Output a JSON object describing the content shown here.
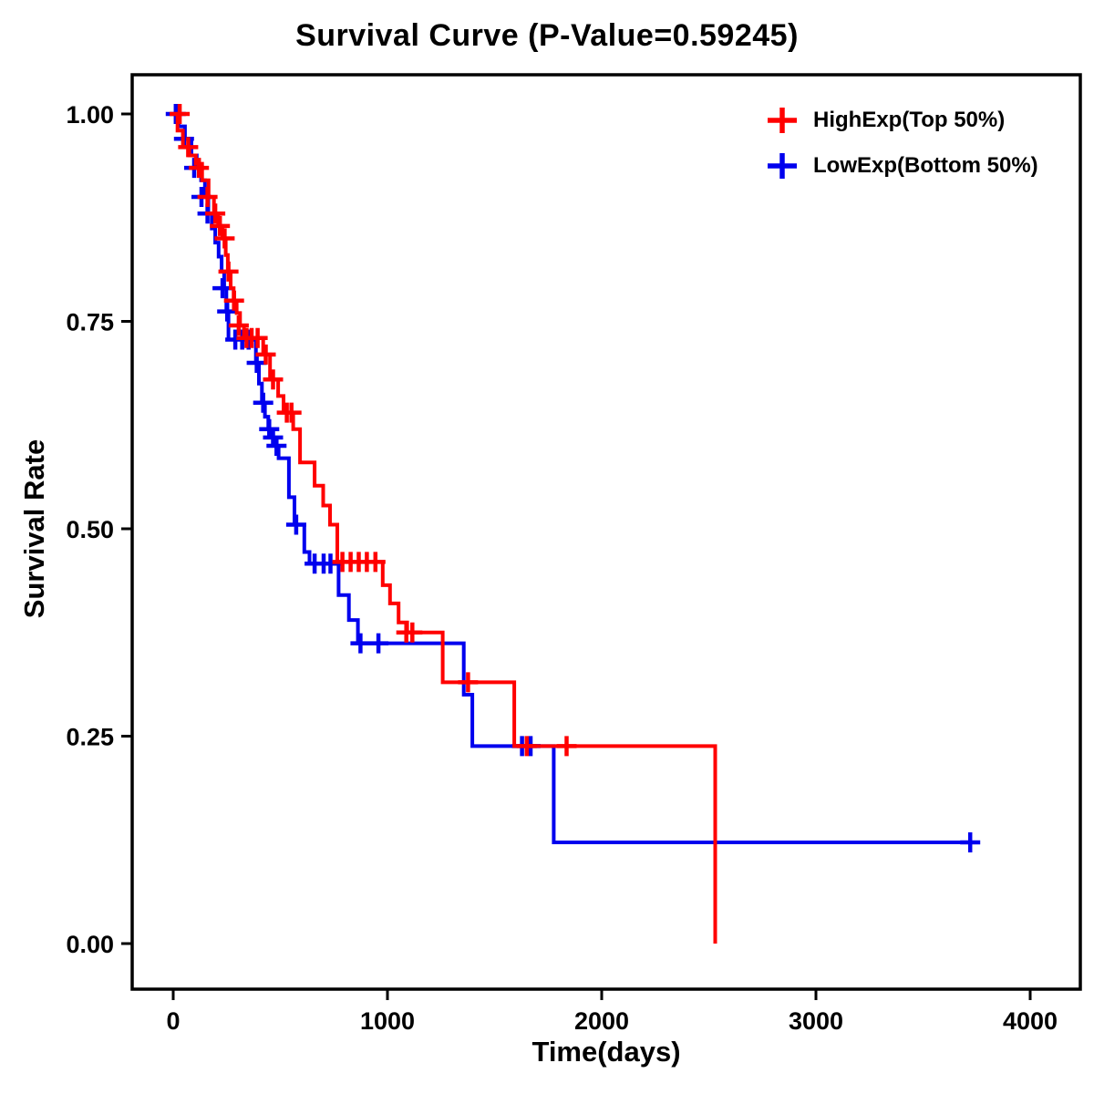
{
  "page": {
    "background_color": "#FFFFFF",
    "text_color": "#000000"
  },
  "chart_data": {
    "type": "line",
    "subtype": "kaplan-meier-survival-step",
    "title": "Survival Curve (P-Value=0.59245)",
    "p_value": "0.59245",
    "xlabel": "Time(days)",
    "ylabel": "Survival Rate",
    "xlim": [
      0,
      4000
    ],
    "ylim": [
      0.0,
      1.0
    ],
    "grid": false,
    "legend_position": "top-right-inside",
    "x_ticks": {
      "labels": [
        "0",
        "1000",
        "2000",
        "3000",
        "4000"
      ],
      "values": [
        0,
        1000,
        2000,
        3000,
        4000
      ]
    },
    "y_ticks": {
      "labels": [
        "0.00",
        "0.25",
        "0.50",
        "0.75",
        "1.00"
      ],
      "values": [
        0,
        0.25,
        0.5,
        0.75,
        1.0
      ]
    },
    "series": [
      {
        "id": "highexp",
        "name": "HighExp(Top 50%)",
        "color": "#FF0000",
        "steps": [
          [
            0,
            1.0
          ],
          [
            20,
            0.98
          ],
          [
            45,
            0.96
          ],
          [
            75,
            0.95
          ],
          [
            105,
            0.94
          ],
          [
            135,
            0.92
          ],
          [
            165,
            0.9
          ],
          [
            190,
            0.88
          ],
          [
            210,
            0.865
          ],
          [
            230,
            0.85
          ],
          [
            245,
            0.83
          ],
          [
            255,
            0.81
          ],
          [
            268,
            0.79
          ],
          [
            282,
            0.775
          ],
          [
            296,
            0.76
          ],
          [
            312,
            0.745
          ],
          [
            330,
            0.73
          ],
          [
            420,
            0.71
          ],
          [
            452,
            0.68
          ],
          [
            490,
            0.66
          ],
          [
            515,
            0.64
          ],
          [
            560,
            0.62
          ],
          [
            592,
            0.58
          ],
          [
            660,
            0.552
          ],
          [
            700,
            0.528
          ],
          [
            732,
            0.505
          ],
          [
            766,
            0.46
          ],
          [
            978,
            0.432
          ],
          [
            1012,
            0.41
          ],
          [
            1052,
            0.387
          ],
          [
            1092,
            0.375
          ],
          [
            1258,
            0.315
          ],
          [
            1592,
            0.238
          ],
          [
            2530,
            0.0
          ]
        ],
        "censor_marks": [
          [
            30,
            1.0
          ],
          [
            70,
            0.96
          ],
          [
            120,
            0.935
          ],
          [
            160,
            0.9
          ],
          [
            196,
            0.88
          ],
          [
            218,
            0.865
          ],
          [
            240,
            0.85
          ],
          [
            258,
            0.81
          ],
          [
            284,
            0.775
          ],
          [
            306,
            0.745
          ],
          [
            342,
            0.73
          ],
          [
            366,
            0.73
          ],
          [
            394,
            0.73
          ],
          [
            432,
            0.71
          ],
          [
            466,
            0.68
          ],
          [
            530,
            0.64
          ],
          [
            552,
            0.64
          ],
          [
            790,
            0.46
          ],
          [
            828,
            0.46
          ],
          [
            866,
            0.46
          ],
          [
            904,
            0.46
          ],
          [
            944,
            0.46
          ],
          [
            1088,
            0.375
          ],
          [
            1116,
            0.375
          ],
          [
            1376,
            0.315
          ],
          [
            1650,
            0.238
          ],
          [
            1836,
            0.238
          ]
        ]
      },
      {
        "id": "lowexp",
        "name": "LowExp(Bottom 50%)",
        "color": "#0000EE",
        "steps": [
          [
            0,
            1.0
          ],
          [
            25,
            0.985
          ],
          [
            55,
            0.97
          ],
          [
            85,
            0.95
          ],
          [
            110,
            0.935
          ],
          [
            130,
            0.92
          ],
          [
            148,
            0.9
          ],
          [
            164,
            0.88
          ],
          [
            180,
            0.862
          ],
          [
            196,
            0.845
          ],
          [
            212,
            0.828
          ],
          [
            226,
            0.81
          ],
          [
            238,
            0.79
          ],
          [
            248,
            0.762
          ],
          [
            258,
            0.728
          ],
          [
            372,
            0.728
          ],
          [
            386,
            0.7
          ],
          [
            400,
            0.675
          ],
          [
            414,
            0.652
          ],
          [
            428,
            0.635
          ],
          [
            444,
            0.62
          ],
          [
            460,
            0.61
          ],
          [
            476,
            0.6
          ],
          [
            492,
            0.585
          ],
          [
            540,
            0.538
          ],
          [
            566,
            0.505
          ],
          [
            612,
            0.472
          ],
          [
            636,
            0.458
          ],
          [
            772,
            0.42
          ],
          [
            820,
            0.39
          ],
          [
            862,
            0.362
          ],
          [
            1312,
            0.362
          ],
          [
            1356,
            0.3
          ],
          [
            1396,
            0.238
          ],
          [
            1776,
            0.122
          ],
          [
            3720,
            0.122
          ]
        ],
        "censor_marks": [
          [
            12,
            1.0
          ],
          [
            50,
            0.97
          ],
          [
            98,
            0.935
          ],
          [
            132,
            0.9
          ],
          [
            160,
            0.88
          ],
          [
            230,
            0.79
          ],
          [
            252,
            0.762
          ],
          [
            290,
            0.728
          ],
          [
            322,
            0.728
          ],
          [
            352,
            0.728
          ],
          [
            390,
            0.7
          ],
          [
            420,
            0.652
          ],
          [
            448,
            0.62
          ],
          [
            466,
            0.61
          ],
          [
            482,
            0.6
          ],
          [
            574,
            0.505
          ],
          [
            660,
            0.458
          ],
          [
            702,
            0.458
          ],
          [
            734,
            0.458
          ],
          [
            874,
            0.362
          ],
          [
            958,
            0.362
          ],
          [
            1628,
            0.238
          ],
          [
            1668,
            0.238
          ],
          [
            3720,
            0.122
          ]
        ]
      }
    ]
  }
}
